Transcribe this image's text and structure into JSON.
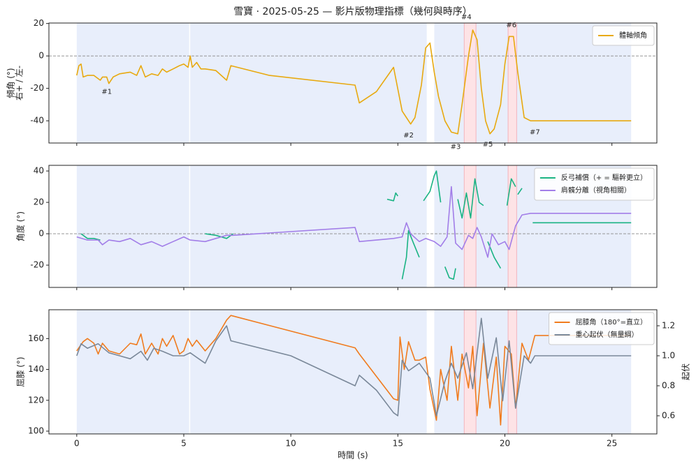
{
  "title": "雪寶 · 2025-05-25 — 影片版物理指標（幾何與時序）",
  "chart_data": [
    {
      "type": "line",
      "ylabel": [
        "傾角 (°)",
        "右+ / 左-"
      ],
      "xlim": [
        -1.3,
        27.1
      ],
      "xticks": [
        0,
        5,
        10,
        15,
        20,
        25
      ],
      "ylim": [
        -53.7,
        20.3
      ],
      "yticks": [
        -40,
        -20,
        0,
        20
      ],
      "hline": 0,
      "spans": [
        [
          0,
          5.25
        ],
        [
          5.3,
          16.35
        ],
        [
          16.7,
          25.9
        ]
      ],
      "span_color": "#e8eefb",
      "highlights": [
        [
          18.1,
          18.65
        ],
        [
          20.15,
          20.55
        ]
      ],
      "highlight_color": "#fde3e6",
      "legend": "upper right",
      "series": [
        {
          "name": "體軸傾角",
          "color": "#e8a90f",
          "x": [
            0,
            0.1,
            0.2,
            0.3,
            0.5,
            0.8,
            1.1,
            1.2,
            1.4,
            1.5,
            1.7,
            2.0,
            2.5,
            2.8,
            3.0,
            3.2,
            3.5,
            3.8,
            4.0,
            4.2,
            4.5,
            4.8,
            5.0,
            5.2,
            5.3,
            5.4,
            5.6,
            5.8,
            6.0,
            6.5,
            7.0,
            7.2,
            9,
            13,
            13.2,
            14,
            14.8,
            15.2,
            15.4,
            15.6,
            15.8,
            16.1,
            16.3,
            16.5,
            16.7,
            16.9,
            17.2,
            17.5,
            17.8,
            18.0,
            18.3,
            18.5,
            18.7,
            18.9,
            19.1,
            19.3,
            19.5,
            19.8,
            20.0,
            20.2,
            20.4,
            20.6,
            20.9,
            21.2,
            25.9
          ],
          "values": [
            -12,
            -6,
            -5,
            -13,
            -12,
            -12,
            -15,
            -13,
            -13,
            -17,
            -13,
            -11,
            -10,
            -12,
            -6,
            -13,
            -11,
            -12,
            -8,
            -10,
            -8,
            -6,
            -5,
            -7,
            0,
            -7,
            -4,
            -8,
            -8,
            -9,
            -15,
            -6,
            -12,
            -18,
            -29,
            -22,
            -7,
            -34,
            -38,
            -42,
            -38,
            -18,
            5,
            8,
            -10,
            -25,
            -40,
            -47,
            -48,
            -30,
            0,
            16,
            10,
            -20,
            -40,
            -48,
            -45,
            -30,
            -5,
            12,
            12,
            -10,
            -38,
            -40,
            -40
          ]
        }
      ],
      "annotations": [
        {
          "text": "#1",
          "x": 1.4,
          "y": -22
        },
        {
          "text": "#2",
          "x": 15.5,
          "y": -49
        },
        {
          "text": "#3",
          "x": 17.7,
          "y": -56
        },
        {
          "text": "#4",
          "x": 18.2,
          "y": 24
        },
        {
          "text": "#5",
          "x": 19.2,
          "y": -54.5
        },
        {
          "text": "#6",
          "x": 20.3,
          "y": 19
        },
        {
          "text": "#7",
          "x": 21.4,
          "y": -47
        }
      ]
    },
    {
      "type": "line",
      "ylabel": [
        "角度 (°)"
      ],
      "xlim": [
        -1.3,
        27.1
      ],
      "xticks": [
        0,
        5,
        10,
        15,
        20,
        25
      ],
      "ylim": [
        -34.2,
        43.6
      ],
      "yticks": [
        -20,
        0,
        20,
        40
      ],
      "hline": 0,
      "spans": [
        [
          0,
          5.25
        ],
        [
          5.3,
          16.35
        ],
        [
          16.7,
          25.9
        ]
      ],
      "span_color": "#e8eefb",
      "highlights": [
        [
          18.1,
          18.65
        ],
        [
          20.15,
          20.55
        ]
      ],
      "highlight_color": "#fde3e6",
      "legend": "upper right",
      "series": [
        {
          "name": "反弓補償（+ = 驅幹更立）",
          "color": "#1ab384",
          "x": [
            0.2,
            0.5,
            0.8,
            1.1,
            1.5,
            6.0,
            6.5,
            7.0,
            7.3,
            7.5,
            14.5,
            14.8,
            14.9,
            15.0,
            15.1,
            15.2,
            15.4,
            15.5,
            15.7,
            16.0,
            16.1,
            16.2,
            16.5,
            16.7,
            16.8,
            17.0,
            17.1,
            17.2,
            17.4,
            17.6,
            17.7,
            17.75,
            17.8,
            18.0,
            18.2,
            18.4,
            18.6,
            18.8,
            19.0,
            19.1,
            19.2,
            19.5,
            19.8,
            20.0,
            20.1,
            20.3,
            20.5,
            20.55,
            20.6,
            20.8,
            21.0,
            21.3,
            25.9
          ],
          "values": [
            0,
            -3,
            -3,
            -4,
            null,
            0,
            -1,
            -3,
            0,
            null,
            22,
            21,
            26,
            24,
            null,
            -29,
            -15,
            2,
            -5,
            -15,
            null,
            21,
            27,
            37,
            40,
            20,
            null,
            -21,
            -28,
            -29,
            -22,
            null,
            22,
            10,
            26,
            10,
            35,
            20,
            18,
            null,
            -5,
            -15,
            -22,
            null,
            18,
            35,
            30,
            null,
            25,
            29,
            null,
            7,
            7
          ]
        },
        {
          "name": "肩髖分離（視角相關）",
          "color": "#a27ee8",
          "x": [
            0,
            0.5,
            1,
            1.2,
            1.5,
            2,
            2.5,
            3,
            3.5,
            4,
            4.5,
            5,
            5.3,
            6,
            6.5,
            7,
            7.3,
            13,
            13.2,
            14,
            14.8,
            15.2,
            15.4,
            15.6,
            16,
            16.3,
            16.7,
            17,
            17.3,
            17.5,
            17.7,
            18,
            18.3,
            18.5,
            18.7,
            18.9,
            19.2,
            19.4,
            19.7,
            20,
            20.2,
            20.5,
            20.8,
            21.2,
            25.9
          ],
          "values": [
            -2,
            -4,
            -4,
            -7,
            -4,
            -5,
            -3,
            -7,
            -5,
            -8,
            -5,
            -2,
            -4,
            -5,
            -3,
            -1,
            -1,
            4,
            -5,
            -4,
            -3,
            -2,
            7,
            0,
            -5,
            -3,
            -5,
            -8,
            -2,
            30,
            -6,
            -10,
            -1,
            -3,
            4,
            -2,
            -15,
            0,
            -7,
            -5,
            -10,
            5,
            12,
            13,
            13
          ]
        }
      ]
    },
    {
      "type": "line",
      "ylabel": [
        "屈膝 (°)"
      ],
      "y2label": "起伏",
      "xlabel": "時間 (s)",
      "xlim": [
        -1.3,
        27.1
      ],
      "xticks": [
        0,
        5,
        10,
        15,
        20,
        25
      ],
      "xtick_labels": true,
      "ylim": [
        98.2,
        178.7
      ],
      "yticks": [
        100,
        120,
        140,
        160
      ],
      "y2lim": [
        0.479,
        1.307
      ],
      "y2ticks": [
        0.6,
        0.8,
        {
          "value": 1,
          "label": "1.0"
        },
        1.2
      ],
      "spans": [
        [
          0,
          5.25
        ],
        [
          5.3,
          16.35
        ],
        [
          16.7,
          25.9
        ]
      ],
      "span_color": "#e8eefb",
      "highlights": [
        [
          18.1,
          18.65
        ],
        [
          20.15,
          20.55
        ]
      ],
      "highlight_color": "#fde3e6",
      "legend": "upper right",
      "series": [
        {
          "name": "屈膝角（180°=直立）",
          "color": "#f07b1e",
          "x": [
            0,
            0.3,
            0.5,
            0.8,
            1,
            1.2,
            1.5,
            2,
            2.5,
            2.8,
            3,
            3.2,
            3.5,
            3.8,
            4,
            4.2,
            4.5,
            4.8,
            5,
            5.2,
            5.4,
            5.6,
            6,
            6.5,
            7,
            7.2,
            13,
            13.2,
            14.8,
            15,
            15.1,
            15.3,
            15.5,
            15.8,
            16,
            16.3,
            16.5,
            16.8,
            17,
            17.3,
            17.5,
            17.8,
            18,
            18.3,
            18.5,
            18.7,
            19,
            19.3,
            19.6,
            19.8,
            20,
            20.3,
            20.5,
            20.8,
            21.1,
            21.4,
            25.9
          ],
          "values": [
            152,
            158,
            160,
            157,
            150,
            157,
            152,
            150,
            157,
            156,
            163,
            150,
            157,
            150,
            160,
            155,
            162,
            150,
            152,
            160,
            155,
            159,
            152,
            160,
            172,
            175,
            154,
            150,
            121,
            120,
            161,
            140,
            158,
            146,
            146,
            148,
            127,
            107,
            140,
            120,
            155,
            120,
            150,
            128,
            155,
            110,
            157,
            115,
            148,
            104,
            155,
            150,
            115,
            157,
            146,
            162,
            162
          ]
        },
        {
          "name": "重心起伏（無量綱）",
          "color": "#7a8899",
          "axis": "y2",
          "x": [
            0,
            0.2,
            0.5,
            1,
            1.5,
            2,
            2.5,
            3,
            3.3,
            3.6,
            4,
            4.5,
            5,
            5.3,
            5.7,
            6,
            6.5,
            7,
            7.2,
            10,
            13,
            13.2,
            14,
            14.8,
            15,
            15.2,
            15.5,
            16,
            16.5,
            16.8,
            17.2,
            17.5,
            17.8,
            18.2,
            18.5,
            18.9,
            19.2,
            19.6,
            19.9,
            20.2,
            20.5,
            20.9,
            21.2,
            21.4,
            25.9
          ],
          "values": [
            1.0,
            1.08,
            1.05,
            1.08,
            1.02,
            1.0,
            0.98,
            1.03,
            0.97,
            1.05,
            1.03,
            1.0,
            1.0,
            1.02,
            0.98,
            0.95,
            1.1,
            1.2,
            1.1,
            1.0,
            0.8,
            0.87,
            0.77,
            0.62,
            0.6,
            0.97,
            0.9,
            0.95,
            0.85,
            0.6,
            0.83,
            0.95,
            0.85,
            1.02,
            0.78,
            1.25,
            0.85,
            1.12,
            0.7,
            1.1,
            0.65,
            1.0,
            0.95,
            1.0,
            1.0
          ]
        }
      ]
    }
  ]
}
